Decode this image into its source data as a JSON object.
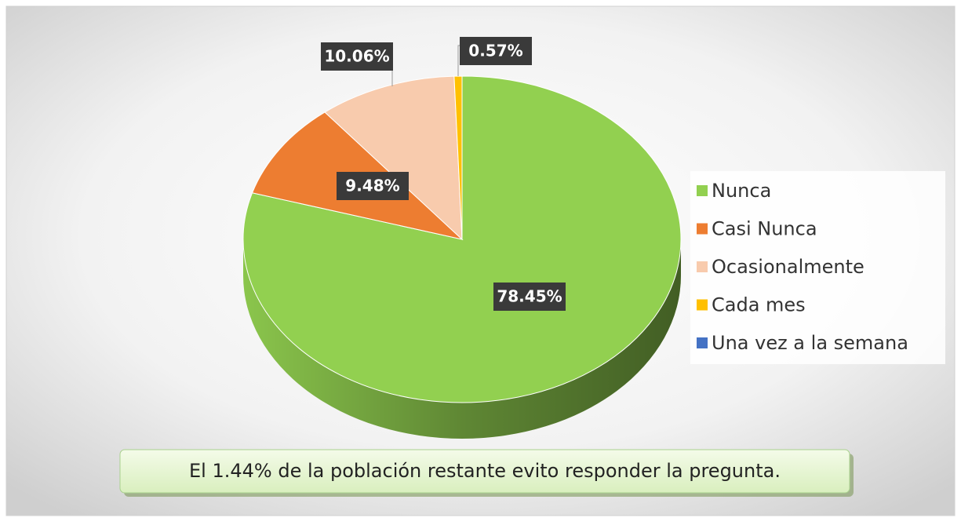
{
  "chart_data": {
    "type": "pie",
    "categories": [
      "Nunca",
      "Casi Nunca",
      "Ocasionalmente",
      "Cada mes",
      "Una vez a la semana"
    ],
    "values": [
      78.45,
      9.48,
      10.06,
      0.57,
      0
    ],
    "value_labels": [
      "78.45%",
      "9.48%",
      "10.06%",
      "0.57%",
      null
    ],
    "colors": [
      "#92d050",
      "#ed7d31",
      "#f8cbad",
      "#ffc000",
      "#4472c4"
    ],
    "legend": "right",
    "annotation": "El 1.44% de la población restante evito responder la pregunta."
  }
}
